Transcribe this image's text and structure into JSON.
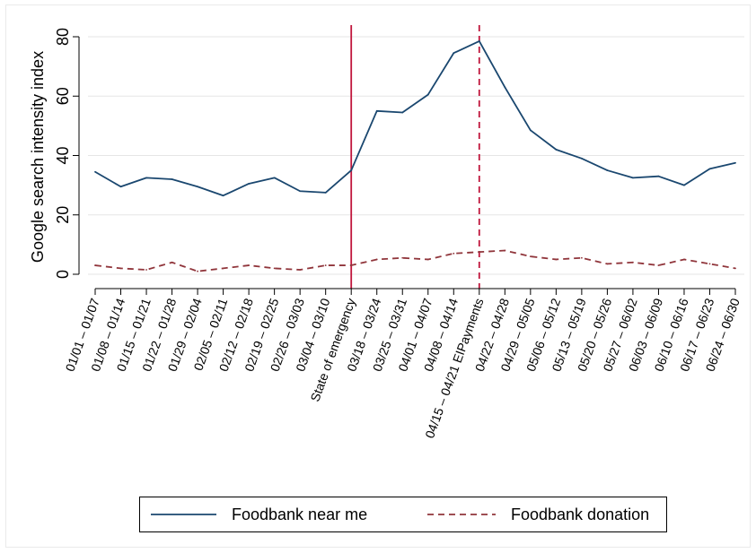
{
  "chart_data": {
    "type": "line",
    "ylabel": "Google search intensity index",
    "xlabel": "",
    "ylim": [
      0,
      80
    ],
    "yticks": [
      0,
      20,
      40,
      60,
      80
    ],
    "grid": true,
    "categories": [
      "01/01 – 01/07",
      "01/08 – 01/14",
      "01/15 – 01/21",
      "01/22 – 01/28",
      "01/29 – 02/04",
      "02/05 – 02/11",
      "02/12 – 02/18",
      "02/19 – 02/25",
      "02/26 – 03/03",
      "03/04 – 03/10",
      "State of emergency",
      "03/18 – 03/24",
      "03/25 – 03/31",
      "04/01 – 04/07",
      "04/08 – 04/14",
      "04/15 – 04/21 EIPayments",
      "04/22 – 04/28",
      "04/29 – 05/05",
      "05/06 – 05/12",
      "05/13 – 05/19",
      "05/20 – 05/26",
      "05/27 – 06/02",
      "06/03 – 06/09",
      "06/10 – 06/16",
      "06/17 – 06/23",
      "06/24 – 06/30"
    ],
    "series": [
      {
        "name": "Foodbank near me",
        "color": "#1a476f",
        "style": "solid",
        "values": [
          34.5,
          29.5,
          32.5,
          32,
          29.5,
          26.5,
          30.5,
          32.5,
          28,
          27.5,
          35,
          55,
          54.5,
          60.5,
          74.5,
          78.5,
          63,
          48.5,
          42,
          39,
          35,
          32.5,
          33,
          30,
          35.5,
          37.5
        ]
      },
      {
        "name": "Foodbank donation",
        "color": "#90353b",
        "style": "dashed",
        "values": [
          3,
          2,
          1.5,
          4,
          1,
          2,
          3,
          2,
          1.5,
          3,
          3,
          5,
          5.5,
          5,
          7,
          7.5,
          8,
          6,
          5,
          5.5,
          3.5,
          4,
          3,
          5,
          3.5,
          2
        ]
      }
    ],
    "vlines": [
      {
        "category_index": 10,
        "style": "solid",
        "color": "#c0173d"
      },
      {
        "category_index": 15,
        "style": "dashed",
        "color": "#c0173d"
      }
    ],
    "legend": {
      "placement": "bottom"
    }
  }
}
